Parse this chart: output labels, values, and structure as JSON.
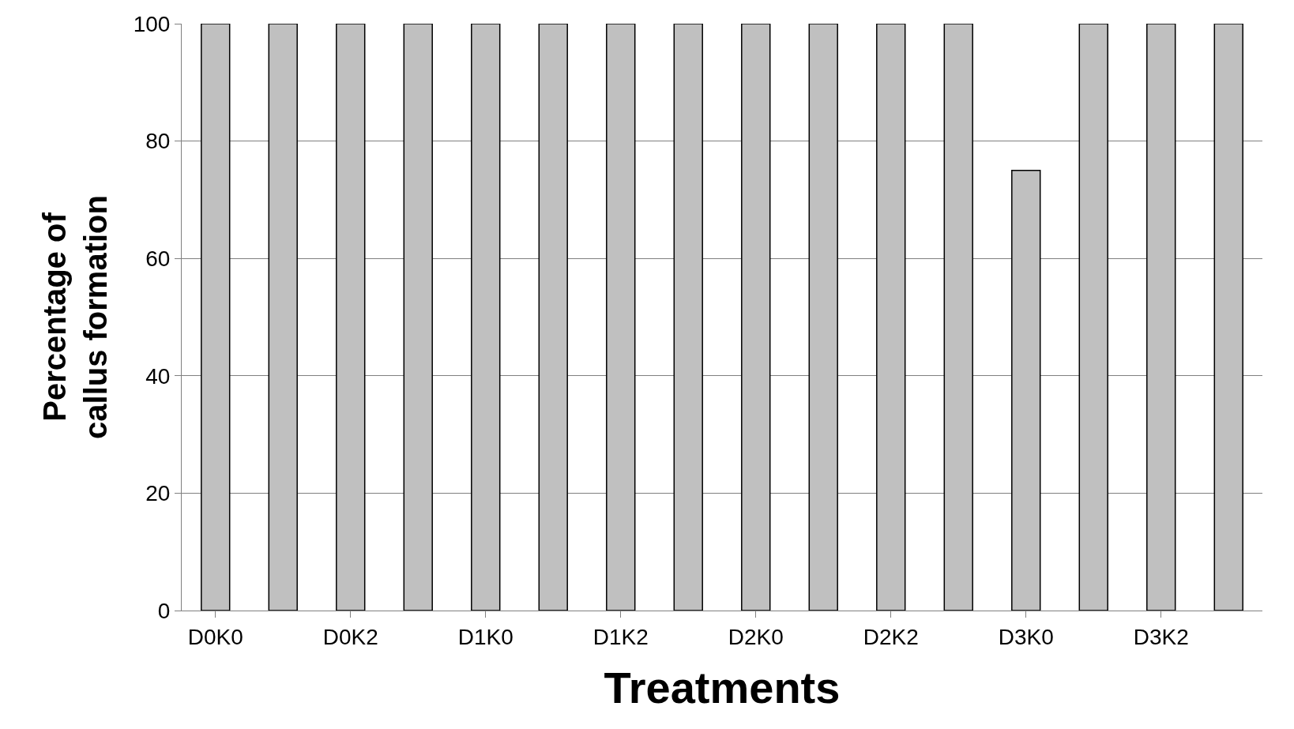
{
  "chart_data": {
    "type": "bar",
    "xlabel": "Treatments",
    "ylabel": "Percentage of\ncallus formation",
    "categories": [
      "D0K0",
      null,
      "D0K2",
      null,
      "D1K0",
      null,
      "D1K2",
      null,
      "D2K0",
      null,
      "D2K2",
      null,
      "D3K0",
      null,
      "D3K2",
      null
    ],
    "values": [
      100,
      100,
      100,
      100,
      100,
      100,
      100,
      100,
      100,
      100,
      100,
      100,
      75,
      100,
      100,
      100
    ],
    "color": "#c0c0c0",
    "ylim": [
      0,
      100
    ],
    "yticks": [
      0,
      20,
      40,
      60,
      80,
      100
    ],
    "grid": "y"
  }
}
